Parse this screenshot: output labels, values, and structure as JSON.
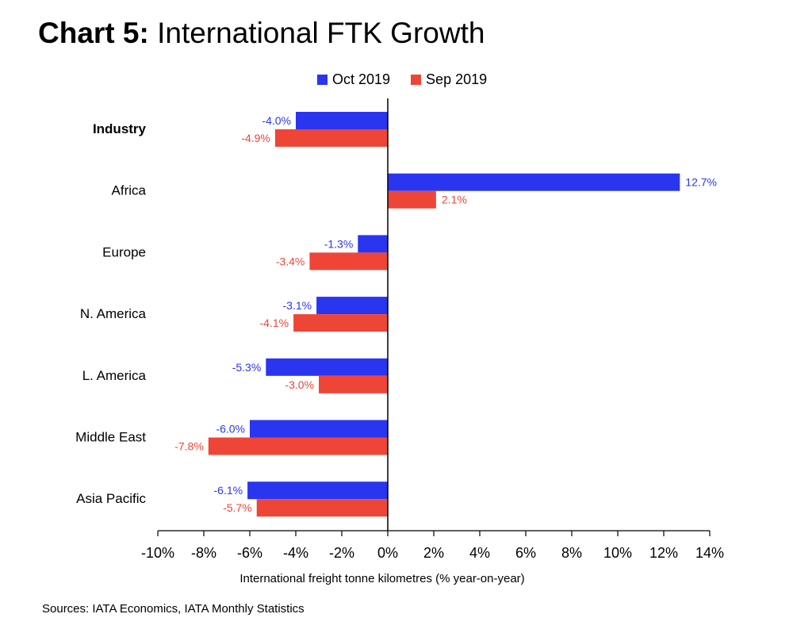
{
  "title": {
    "prefix": "Chart 5:",
    "text": "International FTK Growth"
  },
  "source": "Sources: IATA Economics, IATA Monthly Statistics",
  "colors": {
    "oct": "#2a35f0",
    "sep": "#ef4537",
    "axis": "#000000"
  },
  "chart_data": {
    "type": "bar",
    "orientation": "horizontal",
    "categories": [
      "Industry",
      "Africa",
      "Europe",
      "N. America",
      "L. America",
      "Middle East",
      "Asia Pacific"
    ],
    "bold_categories": [
      "Industry"
    ],
    "series": [
      {
        "name": "Oct 2019",
        "values": [
          -4.0,
          12.7,
          -1.3,
          -3.1,
          -5.3,
          -6.0,
          -6.1
        ],
        "labels": [
          "-4.0%",
          "12.7%",
          "-1.3%",
          "-3.1%",
          "-5.3%",
          "-6.0%",
          "-6.1%"
        ]
      },
      {
        "name": "Sep 2019",
        "values": [
          -4.9,
          2.1,
          -3.4,
          -4.1,
          -3.0,
          -7.8,
          -5.7
        ],
        "labels": [
          "-4.9%",
          "2.1%",
          "-3.4%",
          "-4.1%",
          "-3.0%",
          "-7.8%",
          "-5.7%"
        ]
      }
    ],
    "xlabel": "International freight tonne kilometres (% year-on-year)",
    "xlim": [
      -10,
      14
    ],
    "xticks": [
      -10,
      -8,
      -6,
      -4,
      -2,
      0,
      2,
      4,
      6,
      8,
      10,
      12,
      14
    ],
    "xtick_labels": [
      "-10%",
      "-8%",
      "-6%",
      "-4%",
      "-2%",
      "0%",
      "2%",
      "4%",
      "6%",
      "8%",
      "10%",
      "12%",
      "14%"
    ],
    "grid": false,
    "legend_position": "top"
  }
}
